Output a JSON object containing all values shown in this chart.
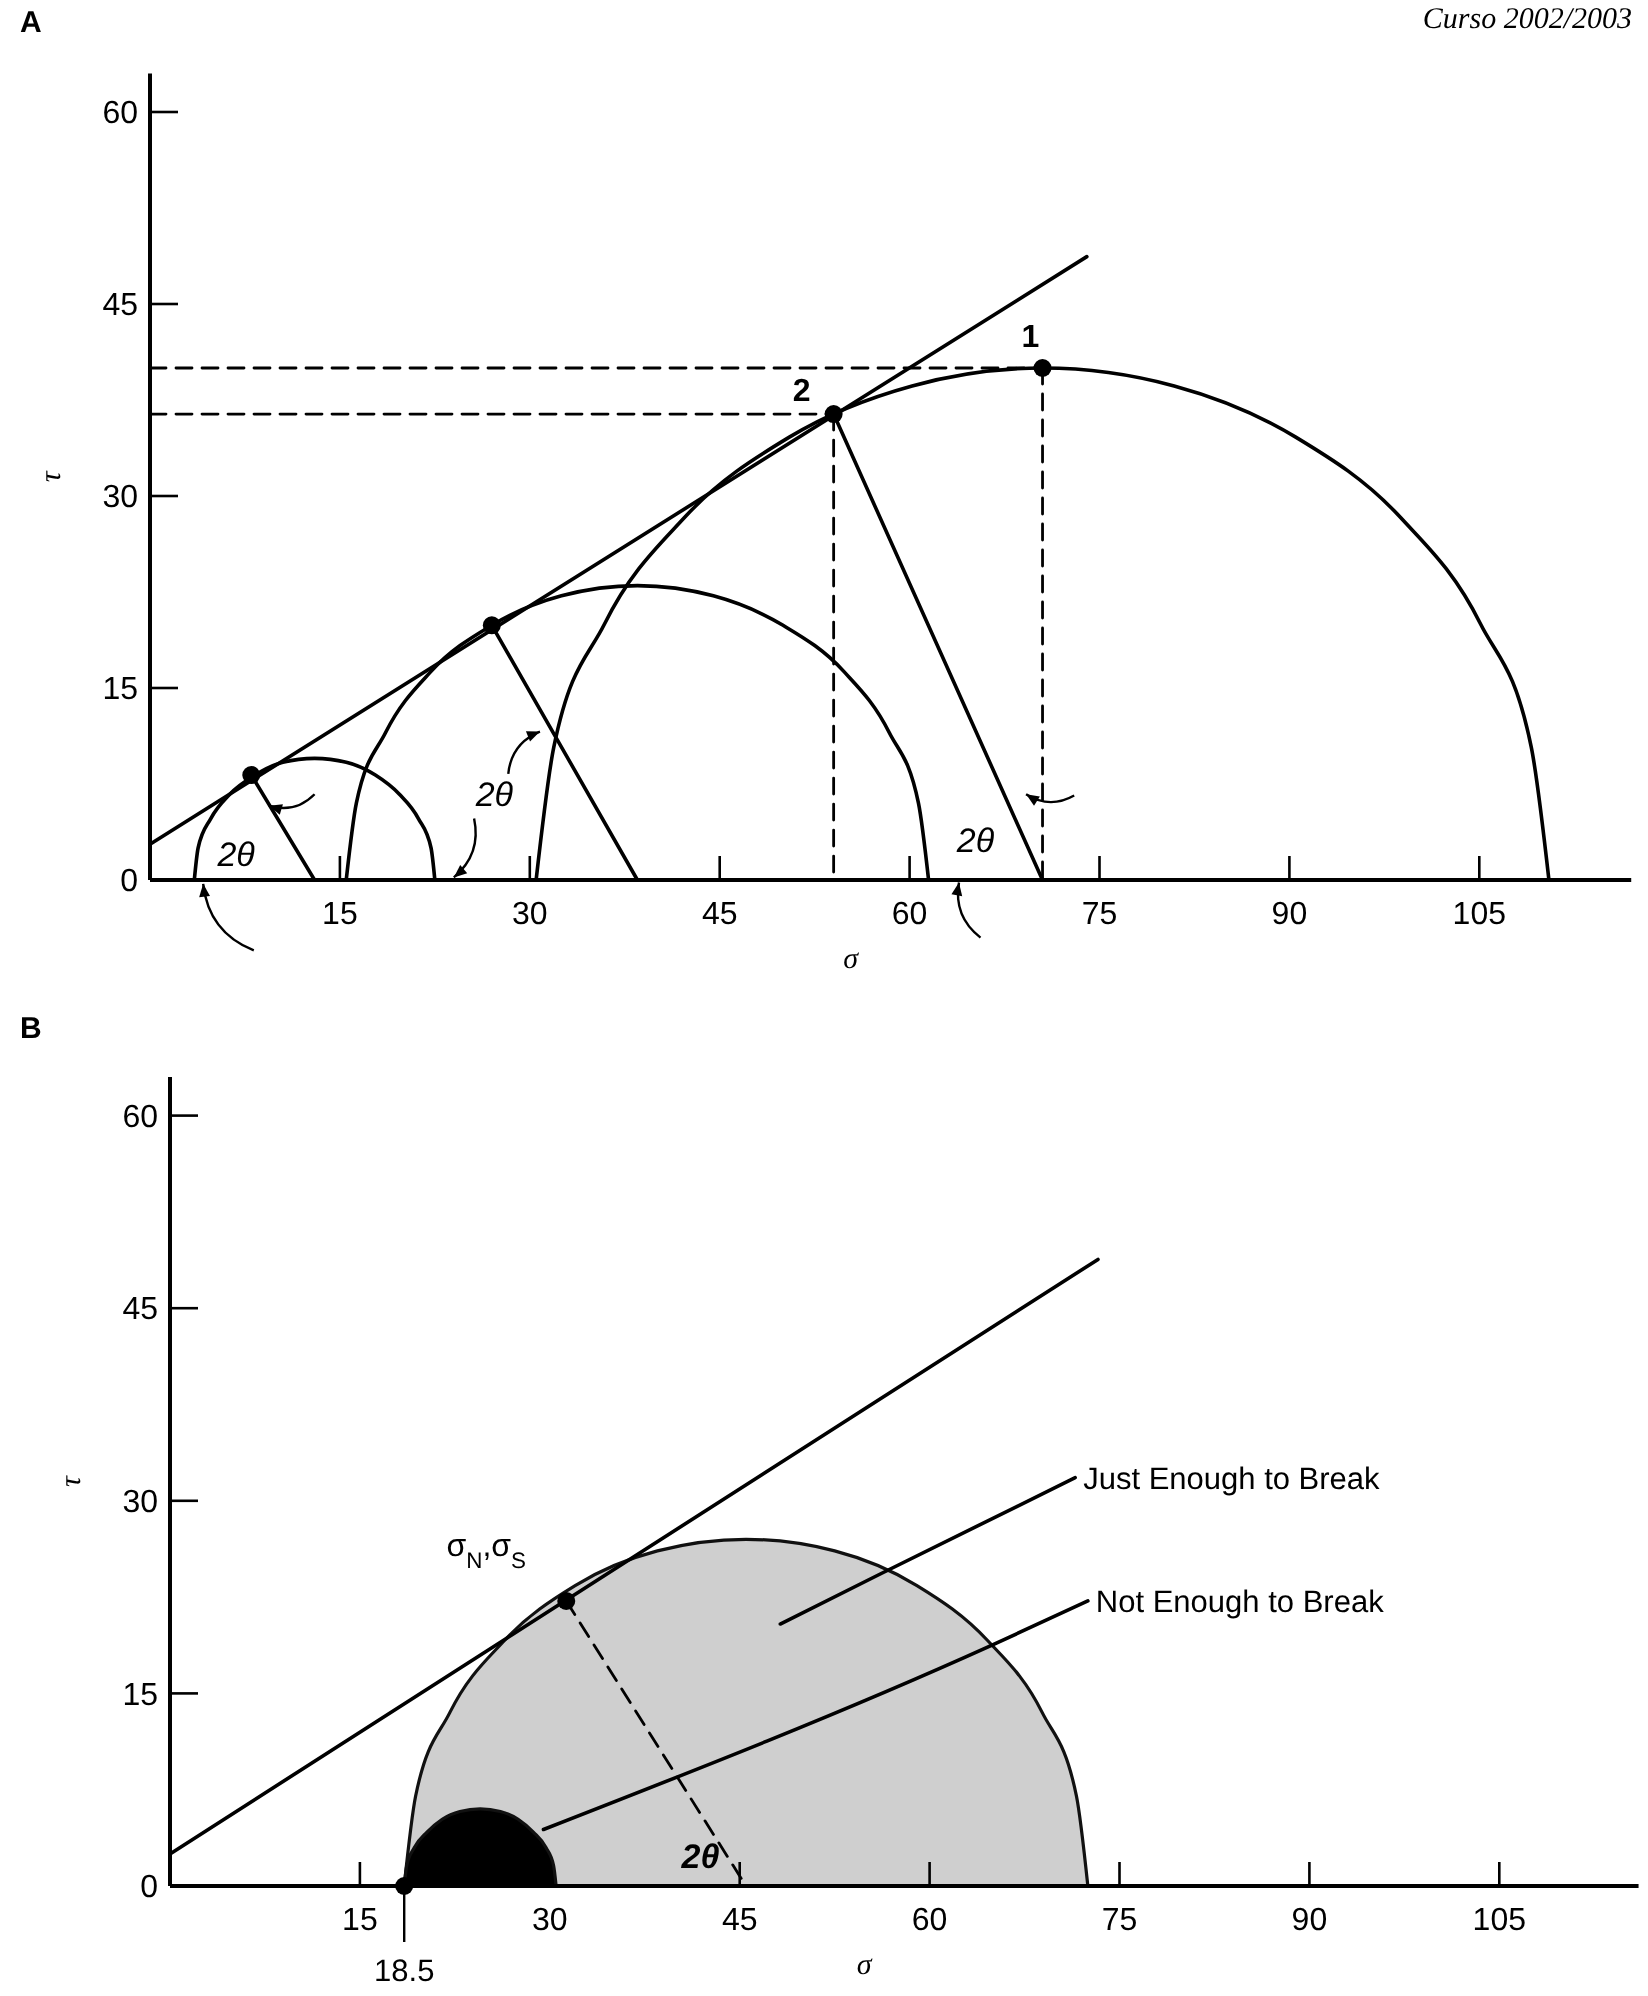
{
  "chart_data": [
    {
      "type": "line",
      "title": "A",
      "xlabel": "σ",
      "ylabel": "τ",
      "xlim": [
        0,
        117
      ],
      "ylim": [
        0,
        63
      ],
      "xticks": [
        15,
        30,
        45,
        60,
        75,
        90,
        105
      ],
      "yticks": [
        0,
        15,
        30,
        45,
        60
      ],
      "annotations": [
        "Curso 2002/2003",
        "2θ",
        "2θ",
        "2θ",
        {
          "text": "2",
          "x": 54,
          "y": 36.4
        },
        {
          "text": "1",
          "x": 70.5,
          "y": 40
        }
      ],
      "series": [
        {
          "type": "line",
          "color": "#000000",
          "x": [
            0,
            74
          ],
          "values": [
            2.8,
            48.7
          ]
        },
        {
          "type": "line",
          "color": "#000000",
          "x": [
            3.5,
            3.8,
            4.8,
            6.3,
            8.3,
            10.5,
            13,
            15.5,
            17.8,
            19.7,
            21.2,
            22.2,
            22.5
          ],
          "values": [
            0,
            2.5,
            4.8,
            6.7,
            8.2,
            9.2,
            9.5,
            9.2,
            8.2,
            6.7,
            4.8,
            2.5,
            0
          ]
        },
        {
          "type": "line",
          "color": "#000000",
          "x": [
            15.5,
            16.3,
            18.6,
            22.2,
            27,
            32.5,
            38.5,
            44.5,
            50,
            54.8,
            58.4,
            60.7,
            61.5
          ],
          "values": [
            0,
            6,
            11.5,
            16.3,
            19.9,
            22.2,
            23,
            22.2,
            19.9,
            16.3,
            11.5,
            6,
            0
          ]
        },
        {
          "type": "line",
          "color": "#000000",
          "x": [
            30.5,
            31.9,
            35.9,
            42.2,
            50.5,
            60.2,
            70.5,
            80.9,
            90.5,
            98.8,
            105.1,
            109.1,
            110.5
          ],
          "values": [
            0,
            10.4,
            20,
            28.3,
            34.6,
            38.6,
            40,
            38.6,
            34.6,
            28.3,
            20,
            10.4,
            0
          ]
        },
        {
          "type": "line",
          "color": "#000000",
          "x": [
            8,
            13
          ],
          "values": [
            8.2,
            0
          ]
        },
        {
          "type": "line",
          "color": "#000000",
          "x": [
            27,
            38.5
          ],
          "values": [
            19.9,
            0
          ]
        },
        {
          "type": "line",
          "color": "#000000",
          "x": [
            54,
            70.5
          ],
          "values": [
            36.4,
            0
          ]
        },
        {
          "type": "line",
          "color": "#000000",
          "line_style": "dashed",
          "x": [
            0,
            70.5
          ],
          "values": [
            40,
            40
          ]
        },
        {
          "type": "line",
          "color": "#000000",
          "line_style": "dashed",
          "x": [
            70.5,
            70.5
          ],
          "values": [
            40,
            0
          ]
        },
        {
          "type": "line",
          "color": "#000000",
          "line_style": "dashed",
          "x": [
            0,
            54
          ],
          "values": [
            36.4,
            36.4
          ]
        },
        {
          "type": "line",
          "color": "#000000",
          "line_style": "dashed",
          "x": [
            54,
            54
          ],
          "values": [
            36.4,
            0
          ]
        },
        {
          "type": "scatter",
          "color": "#000000",
          "marker": "circle",
          "x": [
            8,
            27,
            54,
            70.5
          ],
          "values": [
            8.2,
            19.9,
            36.4,
            40
          ]
        }
      ]
    },
    {
      "type": "line",
      "title": "B",
      "xlabel": "σ",
      "ylabel": "τ",
      "xlim": [
        0,
        116
      ],
      "ylim": [
        0,
        63
      ],
      "xticks": [
        15,
        30,
        45,
        60,
        75,
        90,
        105
      ],
      "yticks": [
        0,
        15,
        30,
        45,
        60
      ],
      "annotations": [
        {
          "text": "σ$_{N}$,σ$_{S}$",
          "x": 31.3,
          "y": 22.2
        },
        "2θ",
        {
          "text": "Just Enough to Break",
          "x": 71.5,
          "y": 31.8
        },
        {
          "text": "Not Enough to Break",
          "x": 72.5,
          "y": 22.2
        },
        {
          "text": "18.5",
          "x": 18.5,
          "y": 0
        }
      ],
      "series": [
        {
          "type": "area",
          "color": "#cfcfcf",
          "x": [
            18.5,
            19.4,
            22.1,
            26.4,
            32,
            38.5,
            45.5,
            52.5,
            59,
            64.6,
            68.9,
            71.6,
            72.5
          ],
          "values": [
            0,
            7,
            13.5,
            19.1,
            23.4,
            26.1,
            27,
            26.1,
            23.4,
            19.1,
            13.5,
            7,
            0
          ]
        },
        {
          "type": "area",
          "color": "#000000",
          "x": [
            18.5,
            18.7,
            19.3,
            20.3,
            21.5,
            22.9,
            24.5,
            26.1,
            27.5,
            28.7,
            29.7,
            30.3,
            30.5
          ],
          "values": [
            0,
            1.6,
            3,
            4.2,
            5.2,
            5.8,
            6,
            5.8,
            5.2,
            4.2,
            3,
            1.6,
            0
          ]
        },
        {
          "type": "line",
          "color": "#000000",
          "x": [
            0,
            73.3
          ],
          "values": [
            2.5,
            48.8
          ]
        },
        {
          "type": "line",
          "color": "#000000",
          "line_style": "dashed",
          "x": [
            31.3,
            45.5
          ],
          "values": [
            22.2,
            0
          ]
        },
        {
          "type": "line",
          "color": "#000000",
          "x": [
            48.2,
            56.1,
            71.5
          ],
          "values": [
            20.4,
            24.3,
            31.8
          ]
        },
        {
          "type": "line",
          "color": "#000000",
          "x": [
            29.5,
            64.8,
            72.5
          ],
          "values": [
            4.4,
            18.7,
            22.2
          ]
        },
        {
          "type": "scatter",
          "color": "#000000",
          "marker": "circle",
          "x": [
            18.5,
            31.3
          ],
          "values": [
            0,
            22.2
          ]
        }
      ]
    }
  ]
}
